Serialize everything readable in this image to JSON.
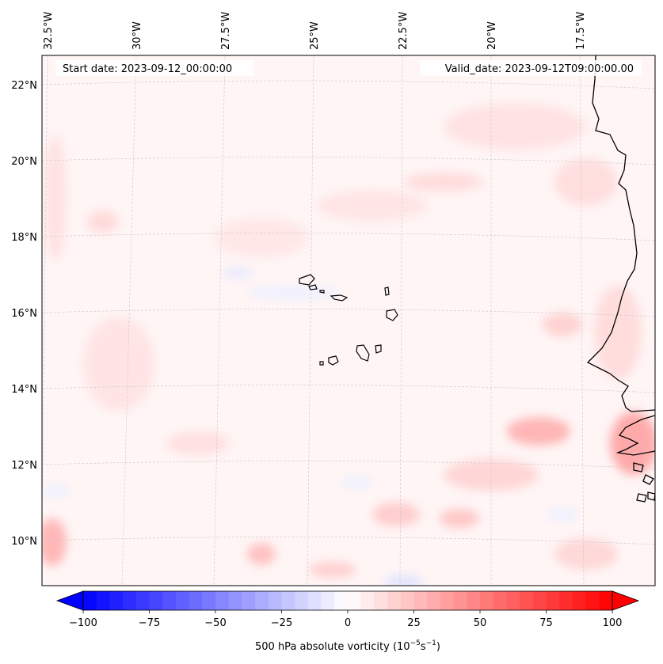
{
  "map": {
    "start_label": "Start date: 2023-09-12_00:00:00",
    "valid_label": "Valid_date: 2023-09-12T09:00:00.00",
    "lon_ticks": [
      "32.5°W",
      "30°W",
      "27.5°W",
      "25°W",
      "22.5°W",
      "20°W",
      "17.5°W"
    ],
    "lat_ticks": [
      "22°N",
      "20°N",
      "18°N",
      "16°N",
      "14°N",
      "12°N",
      "10°N"
    ],
    "field": "500 hPa absolute vorticity"
  },
  "colorbar": {
    "tick_labels": [
      "−100",
      "−75",
      "−50",
      "−25",
      "0",
      "25",
      "50",
      "75",
      "100"
    ],
    "range": [
      -100,
      100
    ],
    "cmap": "bwr",
    "label_main": "500 hPa absolute vorticity (10",
    "label_exp1": "−5",
    "label_mid": "s",
    "label_exp2": "−1",
    "label_end": ")"
  },
  "colors": {
    "negative": "#0000ff",
    "zero": "#ffffff",
    "positive": "#ff0000",
    "coast": "#000000",
    "grid": "#c8c8c8"
  }
}
